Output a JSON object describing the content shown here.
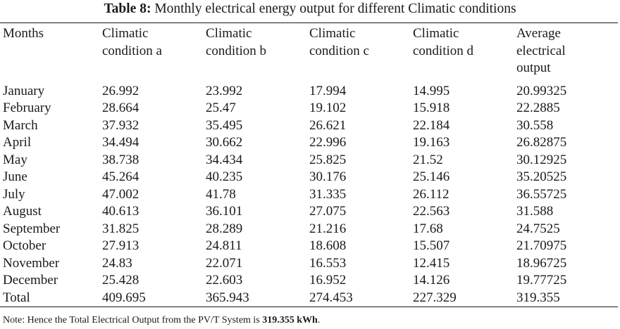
{
  "caption": {
    "label": "Table 8:",
    "text": "Monthly electrical energy output for different Climatic conditions"
  },
  "columns": [
    [
      "Months"
    ],
    [
      "Climatic",
      "condition a"
    ],
    [
      "Climatic",
      "condition b"
    ],
    [
      "Climatic",
      "condition c"
    ],
    [
      "Climatic",
      "condition d"
    ],
    [
      "Average",
      "electrical",
      "output"
    ]
  ],
  "rows": [
    [
      "January",
      "26.992",
      "23.992",
      "17.994",
      "14.995",
      "20.99325"
    ],
    [
      "February",
      "28.664",
      "25.47",
      "19.102",
      "15.918",
      "22.2885"
    ],
    [
      "March",
      "37.932",
      "35.495",
      "26.621",
      "22.184",
      "30.558"
    ],
    [
      "April",
      "34.494",
      "30.662",
      "22.996",
      "19.163",
      "26.82875"
    ],
    [
      "May",
      "38.738",
      "34.434",
      "25.825",
      "21.52",
      "30.12925"
    ],
    [
      "June",
      "45.264",
      "40.235",
      "30.176",
      "25.146",
      "35.20525"
    ],
    [
      "July",
      "47.002",
      "41.78",
      "31.335",
      "26.112",
      "36.55725"
    ],
    [
      "August",
      "40.613",
      "36.101",
      "27.075",
      "22.563",
      "31.588"
    ],
    [
      "September",
      "31.825",
      "28.289",
      "21.216",
      "17.68",
      "24.7525"
    ],
    [
      "October",
      "27.913",
      "24.811",
      "18.608",
      "15.507",
      "21.70975"
    ],
    [
      "November",
      "24.83",
      "22.071",
      "16.553",
      "12.415",
      "18.96725"
    ],
    [
      "December",
      "25.428",
      "22.603",
      "16.952",
      "14.126",
      "19.77725"
    ]
  ],
  "total_row": [
    "Total",
    "409.695",
    "365.943",
    "274.453",
    "227.329",
    "319.355"
  ],
  "note": {
    "prefix": "Note: Hence the Total Electrical Output from the PV/T System is",
    "value": "319.355 kWh",
    "suffix": "."
  }
}
